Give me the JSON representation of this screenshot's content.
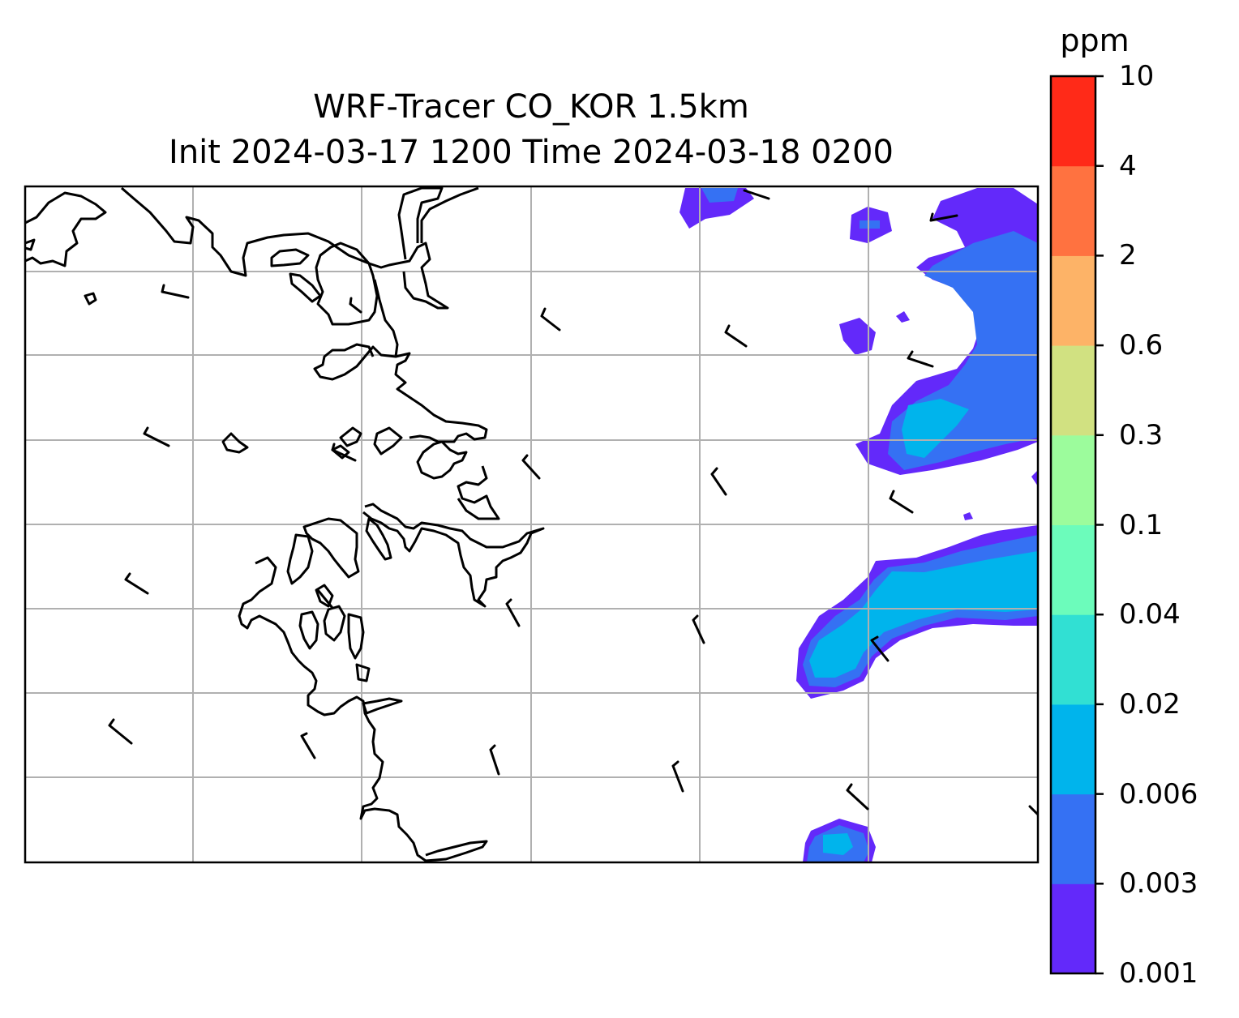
{
  "chart_data": {
    "type": "filled-contour-map",
    "title": "WRF-Tracer CO_KOR 1.5km",
    "subtitle": "Init 2024-03-17 1200 Time 2024-03-18 0200",
    "gridlines": true,
    "colorbar": {
      "unit": "ppm",
      "levels": [
        "0.001",
        "0.003",
        "0.006",
        "0.02",
        "0.04",
        "0.1",
        "0.3",
        "0.6",
        "2",
        "4",
        "10"
      ],
      "colors": [
        "#6329fa",
        "#3571f3",
        "#00b4ec",
        "#31e0d3",
        "#6cfcbb",
        "#9cfc9c",
        "#d1e181",
        "#fdb367",
        "#ff7240",
        "#ff2a18"
      ]
    },
    "overlays": [
      "coastlines",
      "wind barbs"
    ]
  }
}
